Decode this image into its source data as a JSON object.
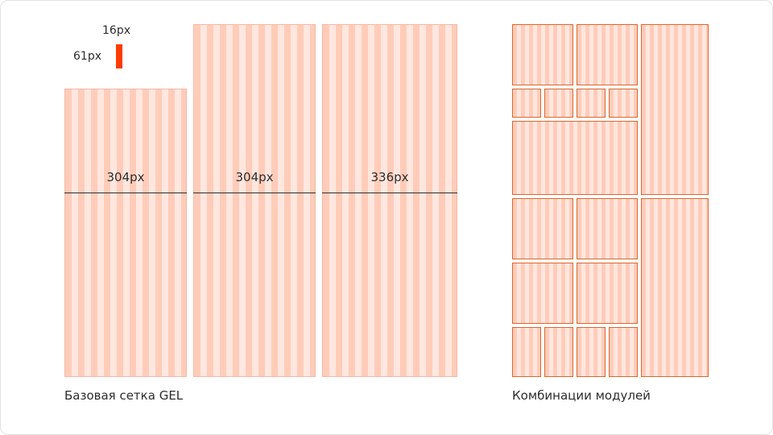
{
  "legend": {
    "gutter_label": "16px",
    "margin_label": "61px",
    "swatch_color": "#ff3c00"
  },
  "base_grid": {
    "columns": [
      {
        "width_label": "304px"
      },
      {
        "width_label": "304px"
      },
      {
        "width_label": "336px"
      }
    ],
    "caption": "Базовая сетка GEL"
  },
  "modules": {
    "caption": "Комбинации модулей",
    "accent": "#d9682f"
  },
  "colors": {
    "stripe_dark": "#ffccb9",
    "stripe_light": "#ffe7df"
  }
}
